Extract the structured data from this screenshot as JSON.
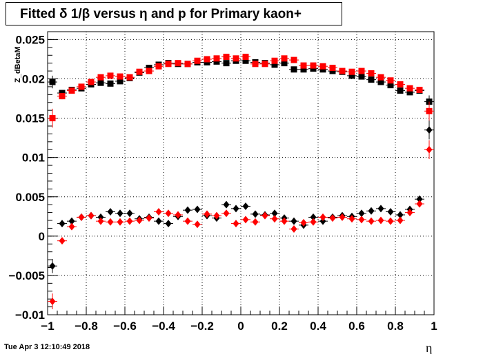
{
  "title": "Fitted δ 1/β versus η and p for Primary kaon+",
  "footer": "Tue Apr  3 12:10:49 2018",
  "chart_data": {
    "type": "scatter",
    "title": "Fitted δ 1/β versus η and p for Primary kaon+",
    "xlabel": "η",
    "ylabel": "Z_dBetaM",
    "xlim": [
      -1,
      1
    ],
    "ylim": [
      -0.01,
      0.026
    ],
    "grid": true,
    "x_ticks": [
      "−1",
      "−0.8",
      "−0.6",
      "−0.4",
      "−0.2",
      "0",
      "0.2",
      "0.4",
      "0.6",
      "0.8",
      "1"
    ],
    "y_ticks": [
      "−0.01",
      "−0.005",
      "0",
      "0.005",
      "0.01",
      "0.015",
      "0.02",
      "0.025"
    ],
    "colors": {
      "black": "#000000",
      "red": "#ff0000"
    },
    "series": [
      {
        "color": "black",
        "marker": "square",
        "x": [
          -0.975,
          -0.925,
          -0.875,
          -0.825,
          -0.775,
          -0.725,
          -0.675,
          -0.625,
          -0.575,
          -0.525,
          -0.475,
          -0.425,
          -0.375,
          -0.325,
          -0.275,
          -0.225,
          -0.175,
          -0.125,
          -0.075,
          -0.025,
          0.025,
          0.075,
          0.125,
          0.175,
          0.225,
          0.275,
          0.325,
          0.375,
          0.425,
          0.475,
          0.525,
          0.575,
          0.625,
          0.675,
          0.725,
          0.775,
          0.825,
          0.875,
          0.925,
          0.975
        ],
        "y": [
          0.0196,
          0.0182,
          0.0186,
          0.0188,
          0.0193,
          0.0195,
          0.0194,
          0.0197,
          0.0201,
          0.0208,
          0.0214,
          0.0218,
          0.022,
          0.0219,
          0.0219,
          0.0221,
          0.0221,
          0.0222,
          0.022,
          0.0223,
          0.0223,
          0.0221,
          0.022,
          0.0218,
          0.022,
          0.0212,
          0.0212,
          0.0213,
          0.0212,
          0.021,
          0.0209,
          0.0204,
          0.0203,
          0.0199,
          0.0196,
          0.0192,
          0.0185,
          0.0183,
          0.0185,
          0.0171
        ],
        "err": [
          0.0008,
          0.0004,
          0.0003,
          0.0003,
          0.0003,
          0.0003,
          0.0003,
          0.0003,
          0.0003,
          0.0003,
          0.0003,
          0.0003,
          0.0003,
          0.0003,
          0.0003,
          0.0003,
          0.0003,
          0.0003,
          0.0003,
          0.0003,
          0.0003,
          0.0003,
          0.0003,
          0.0003,
          0.0003,
          0.0003,
          0.0003,
          0.0003,
          0.0003,
          0.0003,
          0.0003,
          0.0003,
          0.0003,
          0.0003,
          0.0003,
          0.0003,
          0.0003,
          0.0003,
          0.0003,
          0.0008
        ]
      },
      {
        "color": "red",
        "marker": "square",
        "x": [
          -0.975,
          -0.925,
          -0.875,
          -0.825,
          -0.775,
          -0.725,
          -0.675,
          -0.625,
          -0.575,
          -0.525,
          -0.475,
          -0.425,
          -0.375,
          -0.325,
          -0.275,
          -0.225,
          -0.175,
          -0.125,
          -0.075,
          -0.025,
          0.025,
          0.075,
          0.125,
          0.175,
          0.225,
          0.275,
          0.325,
          0.375,
          0.425,
          0.475,
          0.525,
          0.575,
          0.625,
          0.675,
          0.725,
          0.775,
          0.825,
          0.875,
          0.925,
          0.975
        ],
        "y": [
          0.015,
          0.0178,
          0.0185,
          0.019,
          0.0196,
          0.0202,
          0.0204,
          0.0203,
          0.0202,
          0.0209,
          0.021,
          0.0216,
          0.0219,
          0.022,
          0.0219,
          0.0223,
          0.0225,
          0.0226,
          0.0228,
          0.0226,
          0.0228,
          0.0219,
          0.0219,
          0.0223,
          0.0226,
          0.0224,
          0.0217,
          0.0217,
          0.0216,
          0.0214,
          0.021,
          0.0209,
          0.021,
          0.0207,
          0.0202,
          0.0198,
          0.0193,
          0.0188,
          0.0186,
          0.0159
        ],
        "err": [
          0.0012,
          0.0004,
          0.0003,
          0.0003,
          0.0003,
          0.0003,
          0.0003,
          0.0003,
          0.0003,
          0.0003,
          0.0003,
          0.0003,
          0.0003,
          0.0003,
          0.0003,
          0.0003,
          0.0003,
          0.0003,
          0.0003,
          0.0003,
          0.0003,
          0.0003,
          0.0003,
          0.0003,
          0.0003,
          0.0003,
          0.0003,
          0.0003,
          0.0003,
          0.0003,
          0.0003,
          0.0003,
          0.0003,
          0.0003,
          0.0003,
          0.0003,
          0.0003,
          0.0003,
          0.0003,
          0.0012
        ]
      },
      {
        "color": "black",
        "marker": "diamond",
        "x": [
          -0.975,
          -0.925,
          -0.875,
          -0.825,
          -0.775,
          -0.725,
          -0.675,
          -0.625,
          -0.575,
          -0.525,
          -0.475,
          -0.425,
          -0.375,
          -0.325,
          -0.275,
          -0.225,
          -0.175,
          -0.125,
          -0.075,
          -0.025,
          0.025,
          0.075,
          0.125,
          0.175,
          0.225,
          0.275,
          0.325,
          0.375,
          0.425,
          0.475,
          0.525,
          0.575,
          0.625,
          0.675,
          0.725,
          0.775,
          0.825,
          0.875,
          0.925,
          0.975
        ],
        "y": [
          -0.0038,
          0.0016,
          0.0019,
          0.0024,
          0.0026,
          0.0024,
          0.0031,
          0.0029,
          0.0029,
          0.0022,
          0.0024,
          0.0019,
          0.0016,
          0.0025,
          0.0033,
          0.0034,
          0.0026,
          0.0023,
          0.004,
          0.0035,
          0.0038,
          0.0028,
          0.0027,
          0.0029,
          0.0023,
          0.0019,
          0.0014,
          0.0024,
          0.0019,
          0.0024,
          0.0026,
          0.0025,
          0.0029,
          0.0032,
          0.0035,
          0.0031,
          0.0027,
          0.0034,
          0.0047,
          0.0135
        ],
        "err": [
          0.0009,
          0.0004,
          0.0003,
          0.0003,
          0.0003,
          0.0003,
          0.0003,
          0.0003,
          0.0003,
          0.0003,
          0.0003,
          0.0003,
          0.0003,
          0.0003,
          0.0003,
          0.0003,
          0.0003,
          0.0003,
          0.0003,
          0.0003,
          0.0003,
          0.0003,
          0.0003,
          0.0003,
          0.0003,
          0.0003,
          0.0003,
          0.0003,
          0.0003,
          0.0003,
          0.0003,
          0.0003,
          0.0003,
          0.0003,
          0.0003,
          0.0003,
          0.0003,
          0.0003,
          0.0004,
          0.0012
        ]
      },
      {
        "color": "red",
        "marker": "diamond",
        "x": [
          -0.975,
          -0.925,
          -0.875,
          -0.825,
          -0.775,
          -0.725,
          -0.675,
          -0.625,
          -0.575,
          -0.525,
          -0.475,
          -0.425,
          -0.375,
          -0.325,
          -0.275,
          -0.225,
          -0.175,
          -0.125,
          -0.075,
          -0.025,
          0.025,
          0.075,
          0.125,
          0.175,
          0.225,
          0.275,
          0.325,
          0.375,
          0.425,
          0.475,
          0.525,
          0.575,
          0.625,
          0.675,
          0.725,
          0.775,
          0.825,
          0.875,
          0.925,
          0.975
        ],
        "y": [
          -0.0083,
          -0.0006,
          0.0012,
          0.0024,
          0.0026,
          0.0019,
          0.0018,
          0.0018,
          0.0019,
          0.002,
          0.0023,
          0.0031,
          0.0029,
          0.0027,
          0.0019,
          0.0015,
          0.0028,
          0.0026,
          0.0029,
          0.0016,
          0.0021,
          0.0018,
          0.0026,
          0.0022,
          0.0019,
          0.0009,
          0.0017,
          0.0018,
          0.0024,
          0.0023,
          0.0024,
          0.0022,
          0.0021,
          0.0019,
          0.002,
          0.0019,
          0.002,
          0.003,
          0.0041,
          0.011
        ],
        "err": [
          0.001,
          0.0004,
          0.0003,
          0.0003,
          0.0003,
          0.0003,
          0.0003,
          0.0003,
          0.0003,
          0.0003,
          0.0003,
          0.0003,
          0.0003,
          0.0003,
          0.0003,
          0.0003,
          0.0003,
          0.0003,
          0.0003,
          0.0003,
          0.0003,
          0.0003,
          0.0003,
          0.0003,
          0.0003,
          0.0003,
          0.0003,
          0.0003,
          0.0003,
          0.0003,
          0.0003,
          0.0003,
          0.0003,
          0.0003,
          0.0003,
          0.0003,
          0.0003,
          0.0003,
          0.0004,
          0.0012
        ]
      }
    ]
  }
}
